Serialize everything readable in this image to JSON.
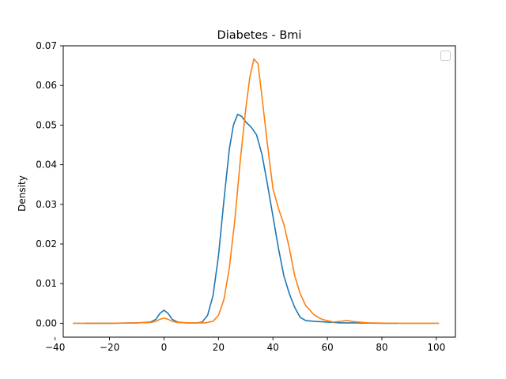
{
  "chart_data": {
    "type": "line",
    "title": "Diabetes - Bmi",
    "xlabel": "",
    "ylabel": "Density",
    "xlim": [
      -37,
      107
    ],
    "ylim": [
      -0.0035,
      0.07
    ],
    "x_ticks": [
      -40,
      -20,
      0,
      20,
      40,
      60,
      80,
      100
    ],
    "x_tick_labels": [
      "−40",
      "−20",
      "0",
      "20",
      "40",
      "60",
      "80",
      "100"
    ],
    "y_ticks": [
      0.0,
      0.01,
      0.02,
      0.03,
      0.04,
      0.05,
      0.06,
      0.07
    ],
    "y_tick_labels": [
      "0.00",
      "0.01",
      "0.02",
      "0.03",
      "0.04",
      "0.05",
      "0.06",
      "0.07"
    ],
    "grid": false,
    "legend": {
      "placement": "upper right",
      "entries": []
    },
    "series": [
      {
        "color": "#1f77b4",
        "points": [
          [
            -29,
            0
          ],
          [
            -20,
            0
          ],
          [
            -10,
            0.0001
          ],
          [
            -5,
            0.0003
          ],
          [
            -3,
            0.001
          ],
          [
            -1.5,
            0.0025
          ],
          [
            0,
            0.0033
          ],
          [
            1.5,
            0.0025
          ],
          [
            3,
            0.001
          ],
          [
            5,
            0.0003
          ],
          [
            8,
            0.0001
          ],
          [
            12,
            0.0001
          ],
          [
            14,
            0.0003
          ],
          [
            16,
            0.002
          ],
          [
            18,
            0.007
          ],
          [
            20,
            0.017
          ],
          [
            22,
            0.031
          ],
          [
            24,
            0.044
          ],
          [
            25.5,
            0.05
          ],
          [
            27,
            0.0527
          ],
          [
            28.5,
            0.0522
          ],
          [
            30,
            0.0508
          ],
          [
            32,
            0.0495
          ],
          [
            34,
            0.0475
          ],
          [
            36,
            0.0425
          ],
          [
            38,
            0.035
          ],
          [
            40,
            0.027
          ],
          [
            42,
            0.019
          ],
          [
            44,
            0.012
          ],
          [
            46,
            0.0075
          ],
          [
            48,
            0.004
          ],
          [
            50,
            0.0015
          ],
          [
            52,
            0.0007
          ],
          [
            55,
            0.0005
          ],
          [
            60,
            0.0003
          ],
          [
            65,
            0.0001
          ],
          [
            70,
            0.0001
          ],
          [
            80,
            0
          ],
          [
            86,
            0
          ]
        ]
      },
      {
        "color": "#ff7f0e",
        "points": [
          [
            -33.5,
            0
          ],
          [
            -20,
            0
          ],
          [
            -10,
            0.0001
          ],
          [
            -5,
            0.0002
          ],
          [
            -3,
            0.0005
          ],
          [
            -1.5,
            0.001
          ],
          [
            0,
            0.0013
          ],
          [
            1.5,
            0.001
          ],
          [
            3,
            0.0005
          ],
          [
            5,
            0.0002
          ],
          [
            10,
            0.0001
          ],
          [
            15,
            0.0001
          ],
          [
            18,
            0.0005
          ],
          [
            20,
            0.002
          ],
          [
            22,
            0.006
          ],
          [
            24,
            0.014
          ],
          [
            26,
            0.026
          ],
          [
            28,
            0.041
          ],
          [
            30,
            0.054
          ],
          [
            31.5,
            0.062
          ],
          [
            33,
            0.0667
          ],
          [
            34.5,
            0.0655
          ],
          [
            36,
            0.057
          ],
          [
            38,
            0.045
          ],
          [
            40,
            0.034
          ],
          [
            42,
            0.029
          ],
          [
            44,
            0.025
          ],
          [
            46,
            0.019
          ],
          [
            48,
            0.012
          ],
          [
            50,
            0.0075
          ],
          [
            52,
            0.0045
          ],
          [
            55,
            0.0022
          ],
          [
            58,
            0.001
          ],
          [
            62,
            0.0003
          ],
          [
            65,
            0.0005
          ],
          [
            67,
            0.0007
          ],
          [
            70,
            0.0004
          ],
          [
            75,
            0.0001
          ],
          [
            85,
            0
          ],
          [
            101,
            0
          ]
        ]
      }
    ]
  }
}
